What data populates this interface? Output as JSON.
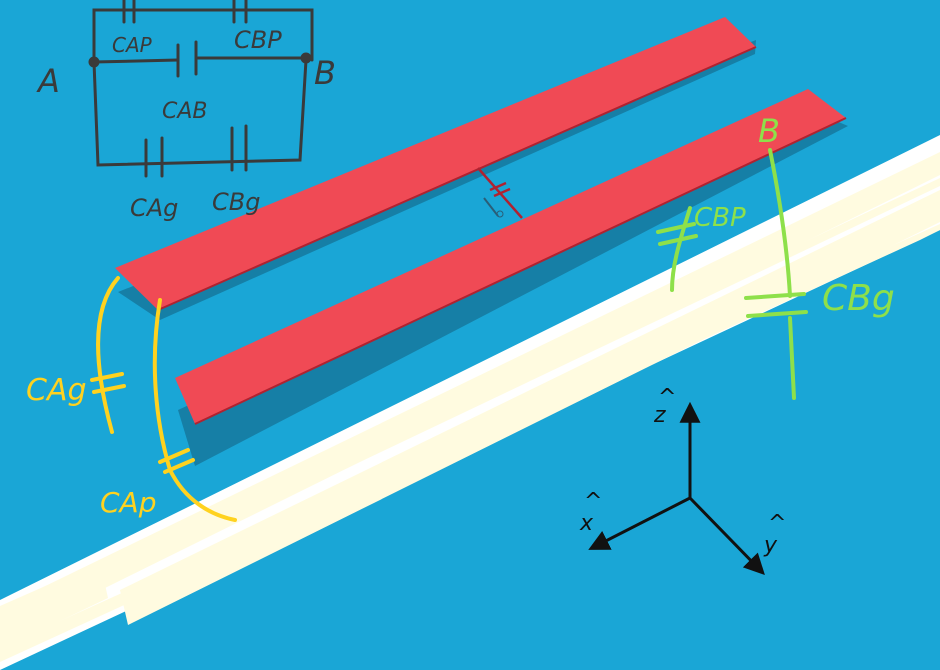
{
  "colors": {
    "background": "#1aa6d6",
    "shadow": "#167fa6",
    "plate": "#f04a55",
    "plate_edge": "#b02230",
    "substrate": "#fffbe0",
    "substrate_border": "#ffffff",
    "schematic_ink": "#3a3a3a",
    "yellow_ink": "#ffd21f",
    "green_ink": "#8ee04a",
    "axes": "#111111"
  },
  "schematic": {
    "node_a": "A",
    "node_b": "B",
    "cap_ap": "CAP",
    "cap_bp": "CBP",
    "cap_ab": "CAB",
    "cap_ag": "CAg",
    "cap_bg": "CBg"
  },
  "annotations": {
    "left": {
      "cap_ag": "CAg",
      "cap_ap": "CAp"
    },
    "right": {
      "node_b": "B",
      "cap_bp": "CBP",
      "cap_bg": "CBg"
    }
  },
  "axes": {
    "z": "z",
    "x": "x",
    "y": "y",
    "hat": "^"
  }
}
